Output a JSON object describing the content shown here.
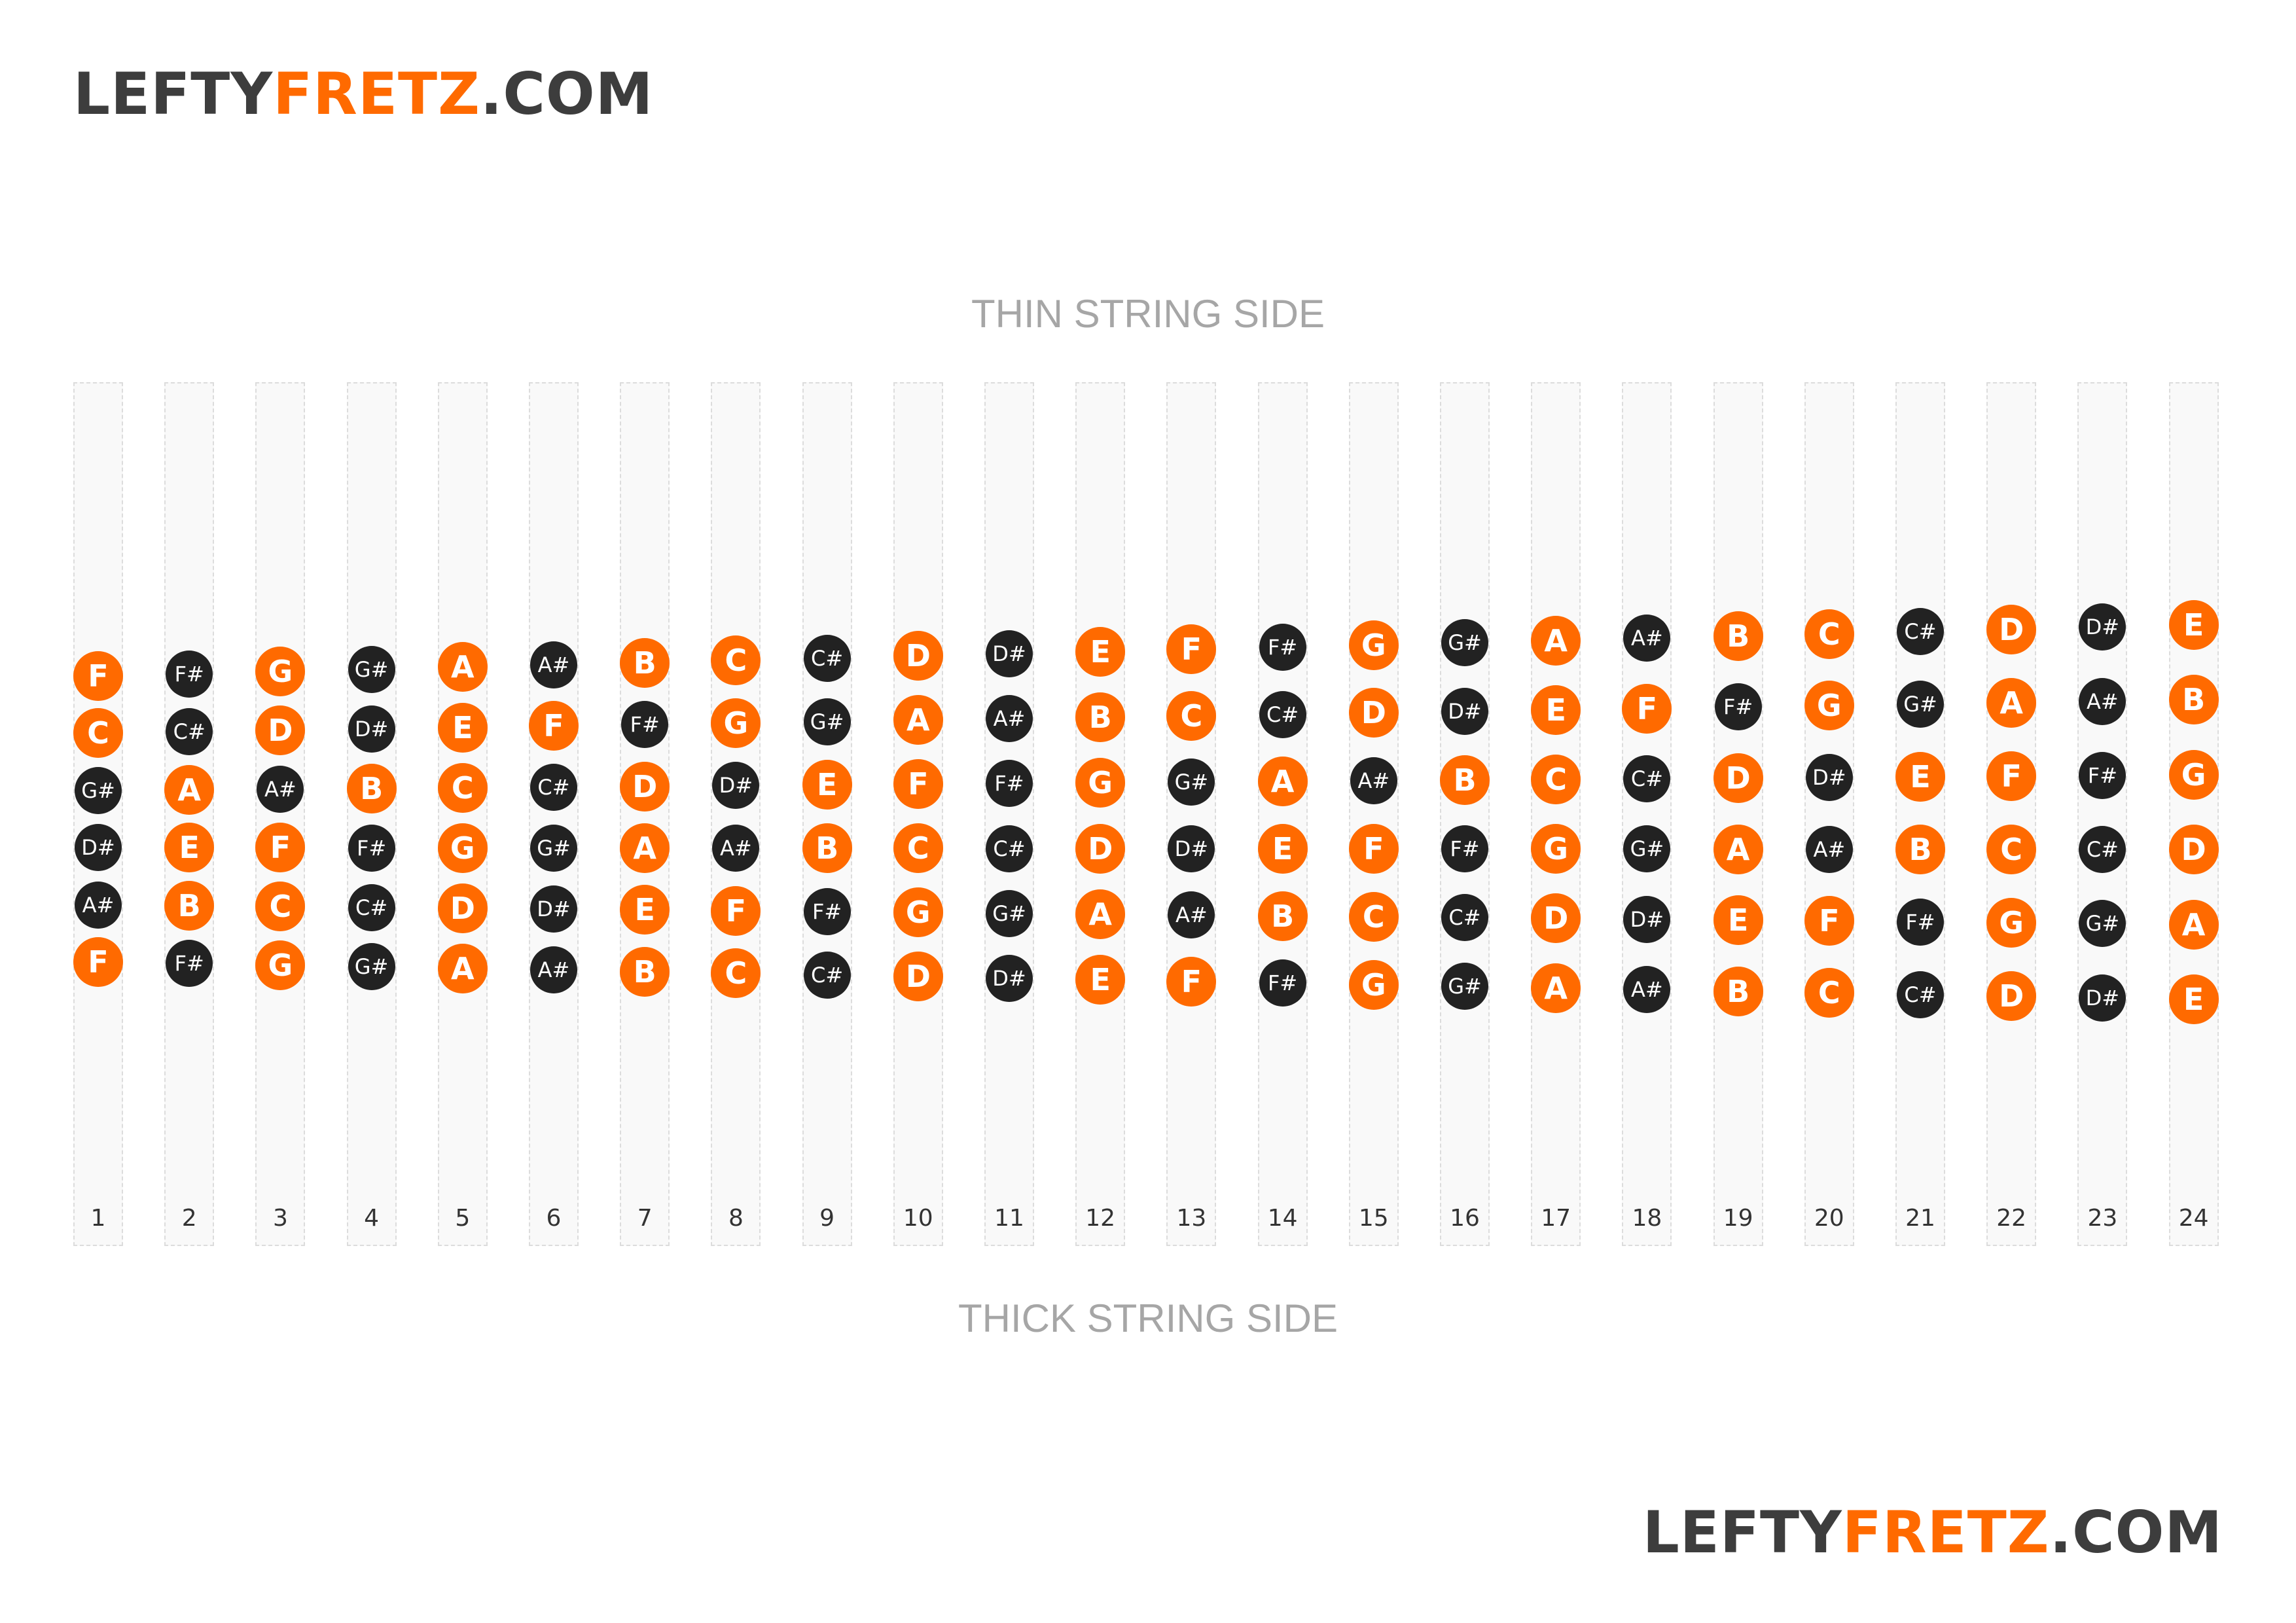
{
  "header": {
    "logo": {
      "part1": "LEFTY",
      "part2": "FRETZ",
      "part3": ".COM"
    }
  },
  "footer": {
    "logo": {
      "part1": "LEFTY",
      "part2": "FRETZ",
      "part3": ".COM"
    }
  },
  "labels": {
    "thin_side": "THIN STRING SIDE",
    "thick_side": "THICK STRING SIDE"
  },
  "colors": {
    "natural": "#ff6a00",
    "sharp": "#222222",
    "brand_dark": "#3d3d3d",
    "brand_accent": "#ff6a00"
  },
  "frets": [
    {
      "number": "1",
      "notes": [
        "F",
        "C",
        "G#",
        "D#",
        "A#",
        "F"
      ]
    },
    {
      "number": "2",
      "notes": [
        "F#",
        "C#",
        "A",
        "E",
        "B",
        "F#"
      ]
    },
    {
      "number": "3",
      "notes": [
        "G",
        "D",
        "A#",
        "F",
        "C",
        "G"
      ]
    },
    {
      "number": "4",
      "notes": [
        "G#",
        "D#",
        "B",
        "F#",
        "C#",
        "G#"
      ]
    },
    {
      "number": "5",
      "notes": [
        "A",
        "E",
        "C",
        "G",
        "D",
        "A"
      ]
    },
    {
      "number": "6",
      "notes": [
        "A#",
        "F",
        "C#",
        "G#",
        "D#",
        "A#"
      ]
    },
    {
      "number": "7",
      "notes": [
        "B",
        "F#",
        "D",
        "A",
        "E",
        "B"
      ]
    },
    {
      "number": "8",
      "notes": [
        "C",
        "G",
        "D#",
        "A#",
        "F",
        "C"
      ]
    },
    {
      "number": "9",
      "notes": [
        "C#",
        "G#",
        "E",
        "B",
        "F#",
        "C#"
      ]
    },
    {
      "number": "10",
      "notes": [
        "D",
        "A",
        "F",
        "C",
        "G",
        "D"
      ]
    },
    {
      "number": "11",
      "notes": [
        "D#",
        "A#",
        "F#",
        "C#",
        "G#",
        "D#"
      ]
    },
    {
      "number": "12",
      "notes": [
        "E",
        "B",
        "G",
        "D",
        "A",
        "E"
      ]
    },
    {
      "number": "13",
      "notes": [
        "F",
        "C",
        "G#",
        "D#",
        "A#",
        "F"
      ]
    },
    {
      "number": "14",
      "notes": [
        "F#",
        "C#",
        "A",
        "E",
        "B",
        "F#"
      ]
    },
    {
      "number": "15",
      "notes": [
        "G",
        "D",
        "A#",
        "F",
        "C",
        "G"
      ]
    },
    {
      "number": "16",
      "notes": [
        "G#",
        "D#",
        "B",
        "F#",
        "C#",
        "G#"
      ]
    },
    {
      "number": "17",
      "notes": [
        "A",
        "E",
        "C",
        "G",
        "D",
        "A"
      ]
    },
    {
      "number": "18",
      "notes": [
        "A#",
        "F",
        "C#",
        "G#",
        "D#",
        "A#"
      ]
    },
    {
      "number": "19",
      "notes": [
        "B",
        "F#",
        "D",
        "A",
        "E",
        "B"
      ]
    },
    {
      "number": "20",
      "notes": [
        "C",
        "G",
        "D#",
        "A#",
        "F",
        "C"
      ]
    },
    {
      "number": "21",
      "notes": [
        "C#",
        "G#",
        "E",
        "B",
        "F#",
        "C#"
      ]
    },
    {
      "number": "22",
      "notes": [
        "D",
        "A",
        "F",
        "C",
        "G",
        "D"
      ]
    },
    {
      "number": "23",
      "notes": [
        "D#",
        "A#",
        "F#",
        "C#",
        "G#",
        "D#"
      ]
    },
    {
      "number": "24",
      "notes": [
        "E",
        "B",
        "G",
        "D",
        "A",
        "E"
      ]
    }
  ]
}
